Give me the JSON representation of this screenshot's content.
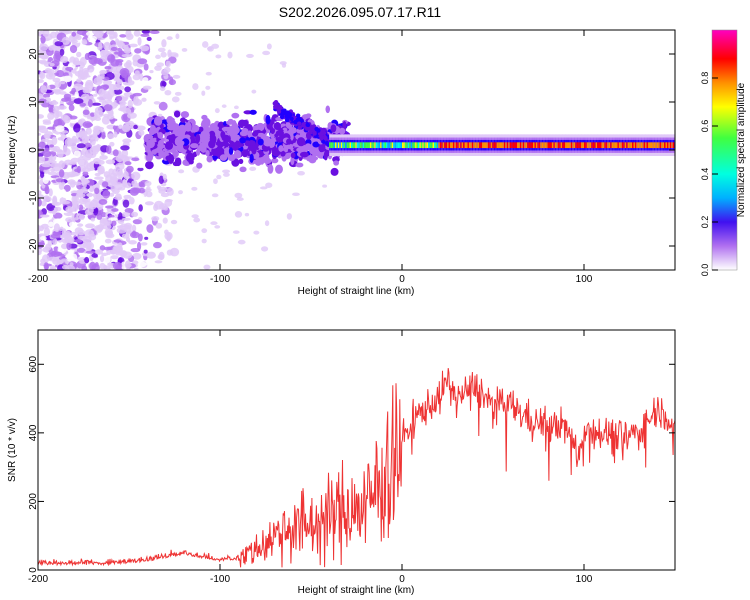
{
  "figure_title": "S202.2026.095.07.17.R11",
  "chart_data": [
    {
      "type": "heatmap",
      "title": "S202.2026.095.07.17.R11",
      "xlabel": "Height of straight line (km)",
      "ylabel": "Frequency (Hz)",
      "xlim": [
        -200,
        150
      ],
      "ylim": [
        -25,
        25
      ],
      "xticks": [
        -200,
        -100,
        0,
        100
      ],
      "yticks": [
        -20,
        -10,
        0,
        10,
        20
      ],
      "colorbar": {
        "label": "Normalized spectral amplitude",
        "range": [
          0,
          1
        ],
        "ticks": [
          0.0,
          0.2,
          0.4,
          0.6,
          0.8
        ],
        "tick_labels": [
          "0.0",
          "0.2",
          "0.4",
          "0.6",
          "0.8"
        ],
        "colormap": [
          "#ffffff",
          "#e0c8f8",
          "#b070f0",
          "#6a10e0",
          "#2000ff",
          "#00b0ff",
          "#00ffe0",
          "#40ff40",
          "#ffff00",
          "#ff9000",
          "#ff0000",
          "#ff00c0"
        ]
      },
      "features": [
        {
          "x_range": [
            -200,
            -140
          ],
          "freq_range": [
            -25,
            25
          ],
          "amplitude": 0.15,
          "description": "scattered noise"
        },
        {
          "x_range": [
            -140,
            -40
          ],
          "freq_range": [
            -4,
            10
          ],
          "amplitude": 0.3
        },
        {
          "x_range": [
            -40,
            150
          ],
          "freq_center": 1,
          "freq_width": 2,
          "amplitude": 0.9
        }
      ]
    },
    {
      "type": "line",
      "xlabel": "Height of straight line (km)",
      "ylabel": "SNR (10 * v/v)",
      "xlim": [
        -200,
        150
      ],
      "ylim": [
        0,
        700
      ],
      "xticks": [
        -200,
        -100,
        0,
        100
      ],
      "yticks": [
        0,
        200,
        400,
        600
      ],
      "series": [
        {
          "name": "SNR",
          "color": "#ee3333",
          "x": [
            -200,
            -180,
            -160,
            -140,
            -120,
            -100,
            -90,
            -80,
            -70,
            -60,
            -50,
            -40,
            -30,
            -20,
            -15,
            -10,
            -5,
            0,
            10,
            20,
            25,
            30,
            40,
            50,
            60,
            70,
            80,
            90,
            97,
            100,
            110,
            120,
            130,
            140,
            145,
            150
          ],
          "values": [
            20,
            20,
            20,
            30,
            50,
            30,
            35,
            60,
            100,
            130,
            130,
            150,
            180,
            180,
            230,
            280,
            330,
            380,
            460,
            500,
            550,
            500,
            540,
            480,
            480,
            440,
            420,
            420,
            330,
            420,
            400,
            390,
            400,
            470,
            460,
            400
          ]
        }
      ]
    }
  ]
}
